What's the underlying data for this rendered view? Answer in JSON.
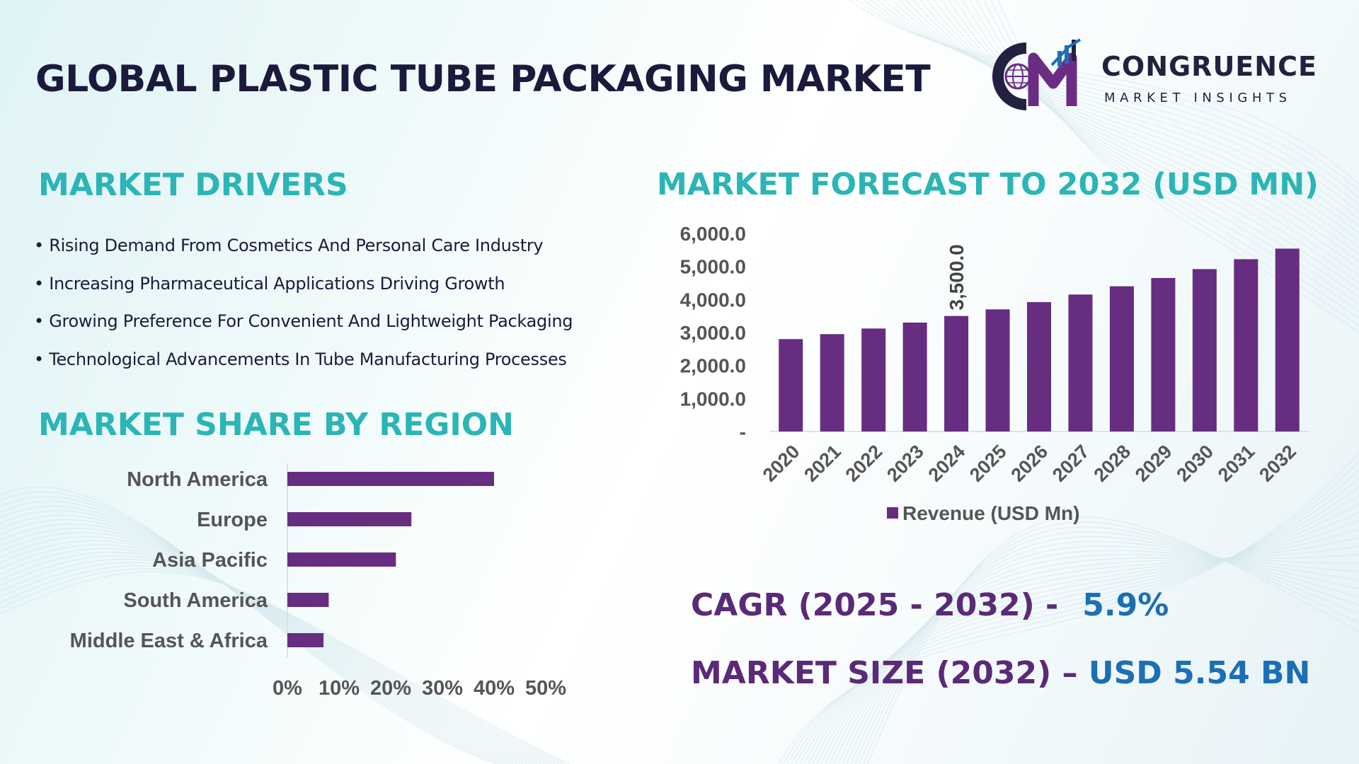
{
  "title": "GLOBAL PLASTIC TUBE PACKAGING MARKET",
  "logo": {
    "name": "CONGRUENCE",
    "tagline": "MARKET INSIGHTS",
    "colors": {
      "dark": "#23213f",
      "accent": "#6a2d83",
      "blue": "#1b6fb5"
    }
  },
  "drivers": {
    "title": "MARKET DRIVERS",
    "items": [
      "Rising Demand From Cosmetics And Personal Care Industry",
      "Increasing Pharmaceutical Applications Driving Growth",
      "Growing Preference For Convenient And Lightweight Packaging",
      "Technological Advancements In Tube Manufacturing Processes"
    ]
  },
  "forecast": {
    "title": "MARKET FORECAST TO 2032 (USD MN)"
  },
  "region": {
    "title": "MARKET SHARE BY REGION"
  },
  "stats": {
    "cagr_label": "CAGR (2025 - 2032) -",
    "cagr_value": "5.9%",
    "size_label": "MARKET SIZE (2032) –",
    "size_value": "USD 5.54 BN"
  },
  "colors": {
    "bar": "#662d80",
    "title_teal": "#2bb5b6",
    "stat_purple": "#5a2a78",
    "stat_blue": "#1b6fb5",
    "text_dark": "#1b1a3c",
    "axis_text": "#555555"
  },
  "chart_data": [
    {
      "type": "bar",
      "orientation": "vertical",
      "categories": [
        "2020",
        "2021",
        "2022",
        "2023",
        "2024",
        "2025",
        "2026",
        "2027",
        "2028",
        "2029",
        "2030",
        "2031",
        "2032"
      ],
      "series": [
        {
          "name": "Revenue (USD Mn)",
          "values": [
            2800,
            2950,
            3120,
            3300,
            3500,
            3700,
            3920,
            4150,
            4400,
            4650,
            4920,
            5220,
            5540
          ]
        }
      ],
      "ylim": [
        0,
        6000
      ],
      "yticks": [
        0,
        1000,
        2000,
        3000,
        4000,
        5000,
        6000
      ],
      "ytick_labels": [
        "-",
        "1,000.0",
        "2,000.0",
        "3,000.0",
        "4,000.0",
        "5,000.0",
        "6,000.0"
      ],
      "data_labels": [
        {
          "category": "2024",
          "text": "3,500.0"
        }
      ],
      "legend": "bottom",
      "grid": false
    },
    {
      "type": "bar",
      "orientation": "horizontal",
      "categories": [
        "North America",
        "Europe",
        "Asia Pacific",
        "South America",
        "Middle East & Africa"
      ],
      "values": [
        40,
        24,
        21,
        8,
        7
      ],
      "xlim": [
        0,
        50
      ],
      "xticks": [
        "0%",
        "10%",
        "20%",
        "30%",
        "40%",
        "50%"
      ],
      "grid": false
    }
  ]
}
